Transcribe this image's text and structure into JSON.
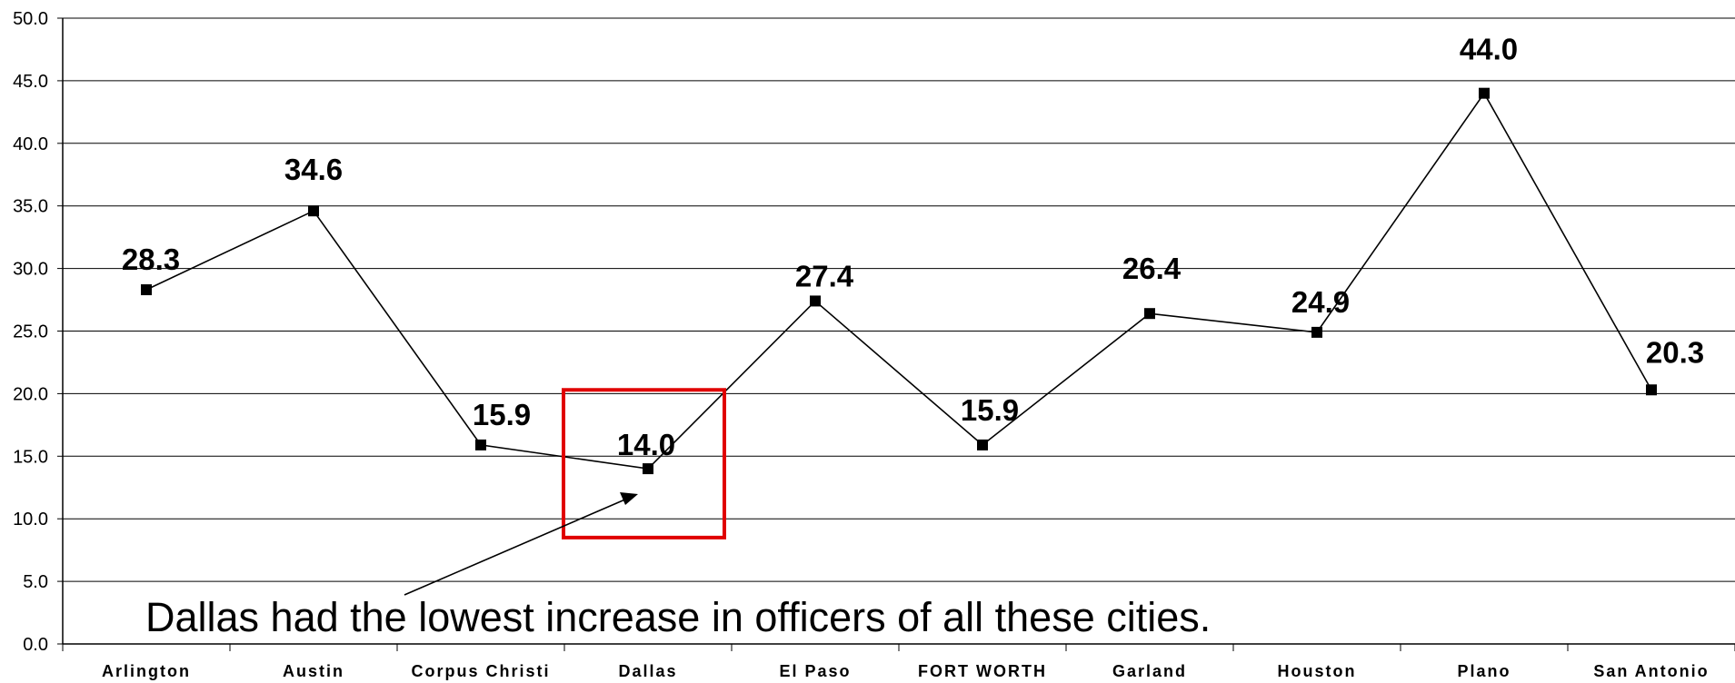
{
  "chart_data": {
    "type": "line",
    "categories": [
      "Arlington",
      "Austin",
      "Corpus Christi",
      "Dallas",
      "El Paso",
      "FORT WORTH",
      "Garland",
      "Houston",
      "Plano",
      "San Antonio"
    ],
    "values": [
      28.3,
      34.6,
      15.9,
      14.0,
      27.4,
      15.9,
      26.4,
      24.9,
      44.0,
      20.3
    ],
    "data_labels": [
      "28.3",
      "34.6",
      "15.9",
      "14.0",
      "27.4",
      "15.9",
      "26.4",
      "24.9",
      "44.0",
      "20.3"
    ],
    "y_ticks": [
      "0.0",
      "5.0",
      "10.0",
      "15.0",
      "20.0",
      "25.0",
      "30.0",
      "35.0",
      "40.0",
      "45.0",
      "50.0"
    ],
    "ylim": [
      0,
      50
    ],
    "grid": true,
    "title": "",
    "xlabel": "",
    "ylabel": "",
    "line_color": "#000000",
    "highlight": {
      "category": "Dallas",
      "color": "#e00000",
      "y_range": [
        8.5,
        20.3
      ]
    },
    "annotation": {
      "text": "Dallas had the lowest increase in officers of all these cities.",
      "points_to": "Dallas"
    }
  }
}
